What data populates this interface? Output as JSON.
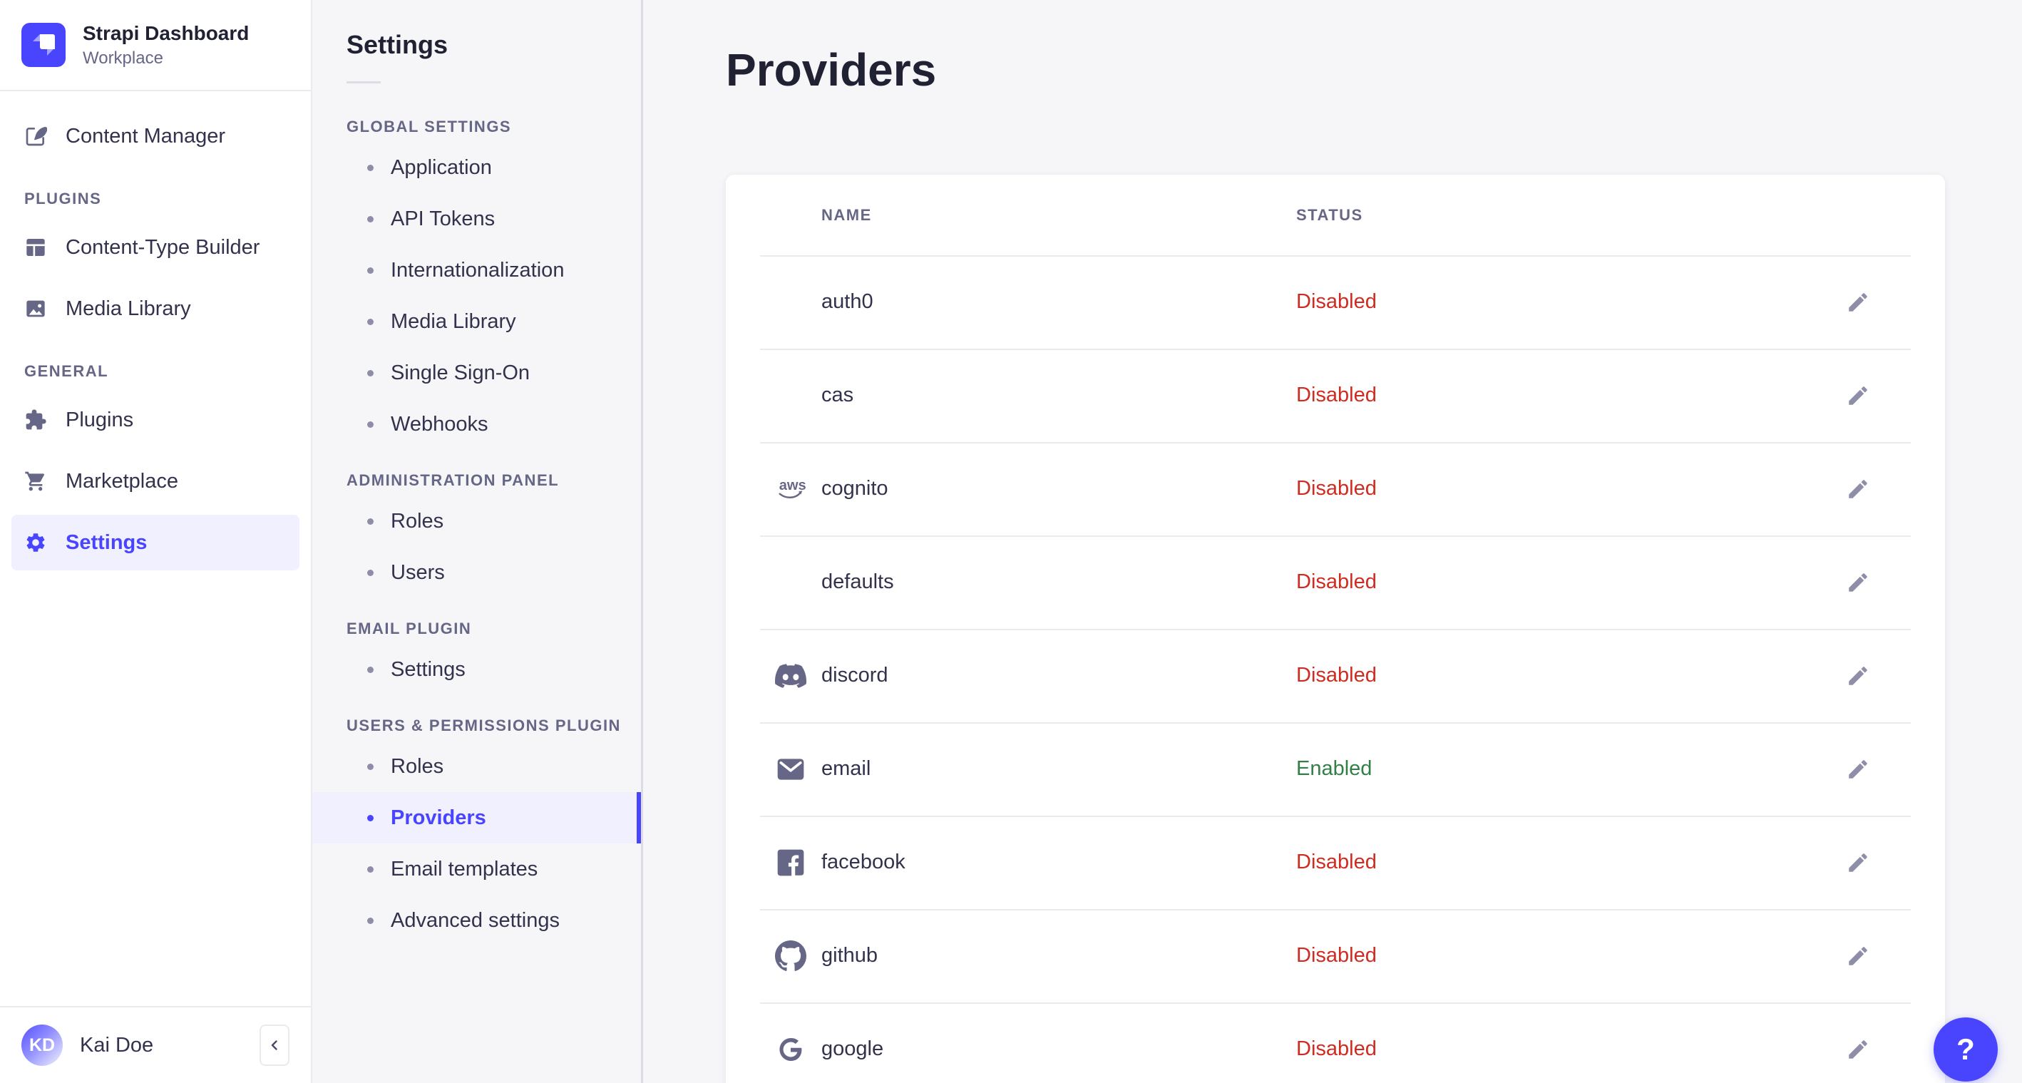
{
  "brand": {
    "app_title": "Strapi Dashboard",
    "workspace": "Workplace"
  },
  "sidebar": {
    "main_items": [
      {
        "label": "Content Manager",
        "icon": "content-manager-icon",
        "active": false
      }
    ],
    "sections": [
      {
        "label": "PLUGINS",
        "items": [
          {
            "label": "Content-Type Builder",
            "icon": "content-type-builder-icon",
            "active": false
          },
          {
            "label": "Media Library",
            "icon": "media-library-icon",
            "active": false
          }
        ]
      },
      {
        "label": "GENERAL",
        "items": [
          {
            "label": "Plugins",
            "icon": "plugins-icon",
            "active": false
          },
          {
            "label": "Marketplace",
            "icon": "marketplace-icon",
            "active": false
          },
          {
            "label": "Settings",
            "icon": "settings-icon",
            "active": true
          }
        ]
      }
    ],
    "user": {
      "name": "Kai Doe",
      "initials": "KD"
    },
    "collapse_icon": "chevron-left-icon"
  },
  "subnav": {
    "title": "Settings",
    "sections": [
      {
        "label": "GLOBAL SETTINGS",
        "items": [
          {
            "label": "Application"
          },
          {
            "label": "API Tokens"
          },
          {
            "label": "Internationalization"
          },
          {
            "label": "Media Library"
          },
          {
            "label": "Single Sign-On"
          },
          {
            "label": "Webhooks"
          }
        ]
      },
      {
        "label": "ADMINISTRATION PANEL",
        "items": [
          {
            "label": "Roles"
          },
          {
            "label": "Users"
          }
        ]
      },
      {
        "label": "EMAIL PLUGIN",
        "items": [
          {
            "label": "Settings"
          }
        ]
      },
      {
        "label": "USERS & PERMISSIONS PLUGIN",
        "items": [
          {
            "label": "Roles"
          },
          {
            "label": "Providers",
            "active": true
          },
          {
            "label": "Email templates"
          },
          {
            "label": "Advanced settings"
          }
        ]
      }
    ]
  },
  "main": {
    "title": "Providers",
    "table": {
      "columns": [
        "NAME",
        "STATUS"
      ],
      "row_action_icon": "edit-pencil-icon",
      "rows": [
        {
          "name": "auth0",
          "icon": null,
          "status": "Disabled"
        },
        {
          "name": "cas",
          "icon": null,
          "status": "Disabled"
        },
        {
          "name": "cognito",
          "icon": "aws-icon",
          "status": "Disabled"
        },
        {
          "name": "defaults",
          "icon": null,
          "status": "Disabled"
        },
        {
          "name": "discord",
          "icon": "discord-icon",
          "status": "Disabled"
        },
        {
          "name": "email",
          "icon": "email-icon",
          "status": "Enabled"
        },
        {
          "name": "facebook",
          "icon": "facebook-icon",
          "status": "Disabled"
        },
        {
          "name": "github",
          "icon": "github-icon",
          "status": "Disabled"
        },
        {
          "name": "google",
          "icon": "google-icon",
          "status": "Disabled"
        }
      ]
    }
  },
  "help": {
    "label": "?"
  },
  "colors": {
    "accent": "#4945FF",
    "accent_bg": "#F0F0FF",
    "status_disabled": "#D02B20",
    "status_enabled": "#328048"
  }
}
